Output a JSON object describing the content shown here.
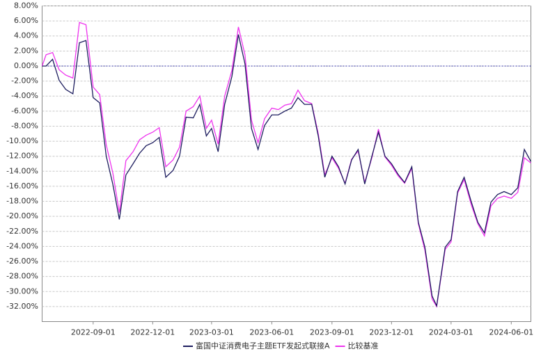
{
  "chart_data": {
    "type": "line",
    "x": [
      "2022-06-15",
      "2022-06-21",
      "2022-07-01",
      "2022-07-11",
      "2022-07-21",
      "2022-08-01",
      "2022-08-11",
      "2022-08-21",
      "2022-09-01",
      "2022-09-11",
      "2022-09-21",
      "2022-10-01",
      "2022-10-11",
      "2022-10-21",
      "2022-11-01",
      "2022-11-11",
      "2022-11-21",
      "2022-12-01",
      "2022-12-11",
      "2022-12-21",
      "2023-01-01",
      "2023-01-11",
      "2023-01-21",
      "2023-02-01",
      "2023-02-11",
      "2023-02-21",
      "2023-03-01",
      "2023-03-11",
      "2023-03-21",
      "2023-04-01",
      "2023-04-11",
      "2023-04-21",
      "2023-05-01",
      "2023-05-11",
      "2023-05-21",
      "2023-06-01",
      "2023-06-11",
      "2023-06-21",
      "2023-07-01",
      "2023-07-11",
      "2023-07-21",
      "2023-08-01",
      "2023-08-11",
      "2023-08-21",
      "2023-09-01",
      "2023-09-11",
      "2023-09-21",
      "2023-10-01",
      "2023-10-11",
      "2023-10-21",
      "2023-11-01",
      "2023-11-11",
      "2023-11-21",
      "2023-12-01",
      "2023-12-11",
      "2023-12-21",
      "2024-01-01",
      "2024-01-11",
      "2024-01-21",
      "2024-02-01",
      "2024-02-08",
      "2024-02-21",
      "2024-03-01",
      "2024-03-11",
      "2024-03-21",
      "2024-04-01",
      "2024-04-11",
      "2024-04-21",
      "2024-05-01",
      "2024-05-11",
      "2024-05-21",
      "2024-06-01",
      "2024-06-11",
      "2024-06-21",
      "2024-07-01"
    ],
    "series": [
      {
        "name": "富国中证消费电子主题ETF发起式联接A",
        "color": "#1c1c5e",
        "values": [
          0,
          0,
          0.9,
          -1.9,
          -3.1,
          -3.7,
          3.1,
          3.4,
          -4.2,
          -4.9,
          -12,
          -15.7,
          -20.4,
          -14.5,
          -13,
          -11.6,
          -10.6,
          -10.2,
          -9.5,
          -14.8,
          -13.9,
          -12,
          -6.8,
          -6.9,
          -5.1,
          -9.3,
          -8.3,
          -11.4,
          -5.1,
          -1.4,
          4.2,
          0.3,
          -8.3,
          -11.1,
          -7.9,
          -6.5,
          -6.5,
          -6,
          -5.6,
          -4.2,
          -5.1,
          -5.1,
          -9.3,
          -14.8,
          -12,
          -13.4,
          -15.7,
          -12.5,
          -11.1,
          -15.7,
          -12,
          -8.8,
          -12,
          -13,
          -14.4,
          -15.5,
          -13.4,
          -20.8,
          -24.1,
          -30.6,
          -31.9,
          -24.1,
          -23.1,
          -16.7,
          -14.8,
          -18.1,
          -20.8,
          -22.2,
          -18.1,
          -17.1,
          -16.7,
          -17.1,
          -16.2,
          -11.1,
          -12.7
        ]
      },
      {
        "name": "比较基准",
        "color": "#ee33ee",
        "values": [
          0,
          1.5,
          1.8,
          -0.5,
          -1.2,
          -1.6,
          5.8,
          5.5,
          -2.8,
          -3.8,
          -10.5,
          -14.2,
          -19.5,
          -12.6,
          -11.4,
          -9.8,
          -9.2,
          -8.8,
          -8.2,
          -13.4,
          -12.5,
          -10.8,
          -6,
          -5.4,
          -4,
          -8.3,
          -7.2,
          -10.4,
          -4,
          -0.6,
          5.2,
          1.5,
          -7.2,
          -10.2,
          -7,
          -5.6,
          -5.8,
          -5.2,
          -5,
          -3.2,
          -4.6,
          -5,
          -9,
          -14.5,
          -12.2,
          -13.6,
          -15.6,
          -12.4,
          -11.3,
          -15.5,
          -12.2,
          -8.4,
          -12.1,
          -13.2,
          -14.6,
          -15.6,
          -13.6,
          -21,
          -24.5,
          -31,
          -32,
          -24.4,
          -23.4,
          -16.9,
          -15.1,
          -18.5,
          -21,
          -22.6,
          -18.6,
          -17.6,
          -17.3,
          -17.6,
          -16.8,
          -12.2,
          -12.9
        ]
      }
    ],
    "xlim": [
      "2022-06-15",
      "2024-07-01"
    ],
    "xticks": [
      "2022-09-01",
      "2022-12-01",
      "2023-03-01",
      "2023-06-01",
      "2023-09-01",
      "2023-12-01",
      "2024-03-01",
      "2024-06-01"
    ],
    "ylim": [
      -34,
      8
    ],
    "yticks": [
      {
        "value": 8,
        "label": "8.00%"
      },
      {
        "value": 6,
        "label": "6.00%"
      },
      {
        "value": 4,
        "label": "4.00%"
      },
      {
        "value": 2,
        "label": "2.00%"
      },
      {
        "value": 0,
        "label": "0.00%"
      },
      {
        "value": -2,
        "label": "-2.00%"
      },
      {
        "value": -4,
        "label": "-4.00%"
      },
      {
        "value": -6,
        "label": "-6.00%"
      },
      {
        "value": -8,
        "label": "-8.00%"
      },
      {
        "value": -10,
        "label": "-10.00%"
      },
      {
        "value": -12,
        "label": "-12.00%"
      },
      {
        "value": -14,
        "label": "-14.00%"
      },
      {
        "value": -16,
        "label": "-16.00%"
      },
      {
        "value": -18,
        "label": "-18.00%"
      },
      {
        "value": -20,
        "label": "-20.00%"
      },
      {
        "value": -22,
        "label": "-22.00%"
      },
      {
        "value": -24,
        "label": "-24.00%"
      },
      {
        "value": -26,
        "label": "-26.00%"
      },
      {
        "value": -28,
        "label": "-28.00%"
      },
      {
        "value": -30,
        "label": "-30.00%"
      },
      {
        "value": -32,
        "label": "-32.00%"
      }
    ],
    "grid": true,
    "reference_line": 0,
    "legend": "bottom"
  }
}
